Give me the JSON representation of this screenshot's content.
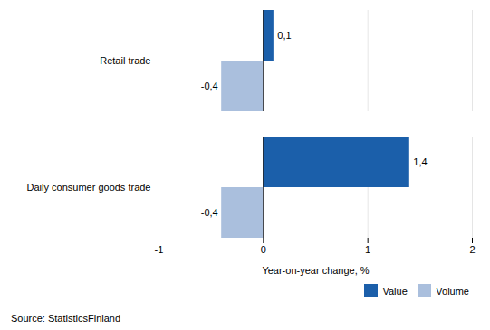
{
  "chart_data": {
    "type": "bar",
    "orientation": "horizontal",
    "categories": [
      "Daily consumer goods trade",
      "Retail trade"
    ],
    "series": [
      {
        "name": "Value",
        "color": "#1B5FAA",
        "values": [
          1.4,
          0.1
        ],
        "value_labels": [
          "1,4",
          "0,1"
        ]
      },
      {
        "name": "Volume",
        "color": "#AABFDD",
        "values": [
          -0.4,
          -0.4
        ],
        "value_labels": [
          "-0,4",
          "-0,4"
        ]
      }
    ],
    "xlim": [
      -1,
      2
    ],
    "xticks": [
      -1,
      0,
      1,
      2
    ],
    "xlabel": "Year-on-year change, %",
    "grid": true,
    "legend": "lower right",
    "data_labels": true,
    "caption": "Source: StatisticsFinland"
  }
}
